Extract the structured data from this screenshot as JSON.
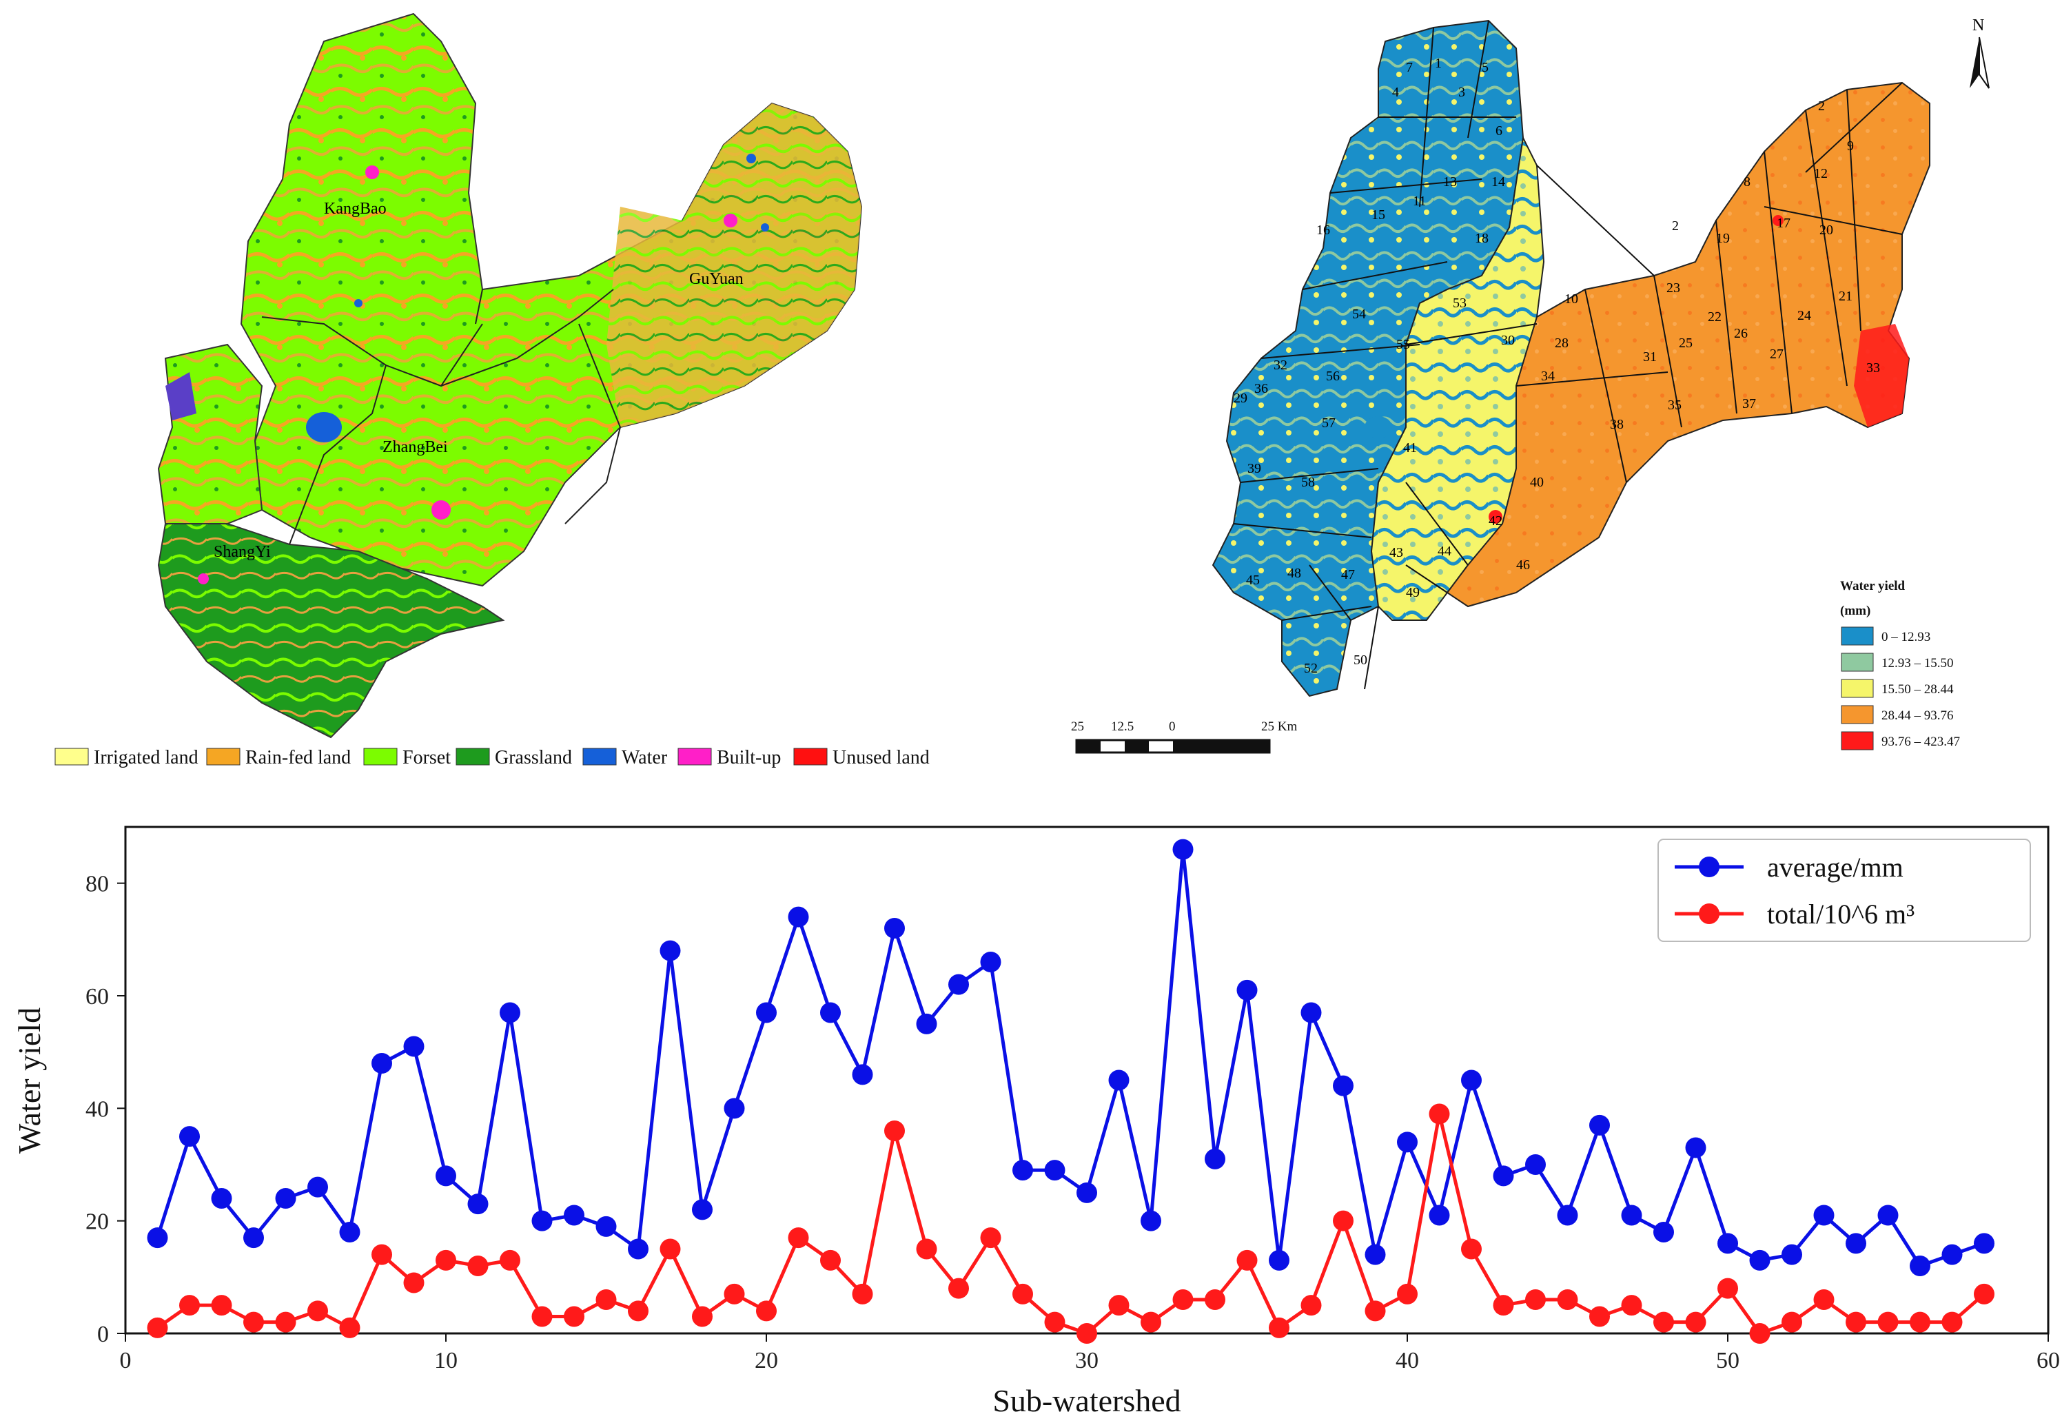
{
  "landuse_map": {
    "region_labels": [
      "KangBao",
      "GuYuan",
      "ZhangBei",
      "ShangYi"
    ],
    "legend": [
      {
        "label": "Irrigated land",
        "color": "#ffff8c"
      },
      {
        "label": "Rain-fed land",
        "color": "#f5a623"
      },
      {
        "label": "Forset",
        "color": "#7cfc00"
      },
      {
        "label": "Grassland",
        "color": "#1e9b1e"
      },
      {
        "label": "Water",
        "color": "#1560d9"
      },
      {
        "label": "Built-up",
        "color": "#ff1fc8"
      },
      {
        "label": "Unused land",
        "color": "#ff1010"
      }
    ]
  },
  "wateryield_map": {
    "north_label": "N",
    "legend_title": "Water yield",
    "legend_unit": "(mm)",
    "legend": [
      {
        "label": "0 – 12.93",
        "color": "#1a8fc9"
      },
      {
        "label": "12.93 – 15.50",
        "color": "#8fc9a0"
      },
      {
        "label": "15.50 – 28.44",
        "color": "#f5f56a"
      },
      {
        "label": "28.44 – 93.76",
        "color": "#f5962e"
      },
      {
        "label": "93.76 – 423.47",
        "color": "#ff1a1a"
      }
    ],
    "scale_labels": [
      "25",
      "12.5",
      "0",
      "25 Km"
    ],
    "subwatershed_labels": [
      "1",
      "2",
      "3",
      "4",
      "5",
      "6",
      "7",
      "8",
      "9",
      "10",
      "11",
      "12",
      "13",
      "14",
      "15",
      "16",
      "17",
      "18",
      "19",
      "20",
      "21",
      "22",
      "23",
      "24",
      "25",
      "26",
      "27",
      "28",
      "29",
      "30",
      "31",
      "32",
      "33",
      "34",
      "35",
      "36",
      "37",
      "38",
      "39",
      "40",
      "41",
      "42",
      "43",
      "44",
      "45",
      "46",
      "47",
      "48",
      "49",
      "50",
      "52",
      "53",
      "54",
      "55",
      "56",
      "57",
      "58",
      "2"
    ]
  },
  "chart_data": {
    "type": "line",
    "xlabel": "Sub-watershed",
    "ylabel": "Water yield",
    "xlim": [
      0,
      60
    ],
    "ylim": [
      0,
      90
    ],
    "xticks": [
      0,
      10,
      20,
      30,
      40,
      50,
      60
    ],
    "yticks": [
      0,
      20,
      40,
      60,
      80
    ],
    "legend_position": "top-right",
    "x": [
      1,
      2,
      3,
      4,
      5,
      6,
      7,
      8,
      9,
      10,
      11,
      12,
      13,
      14,
      15,
      16,
      17,
      18,
      19,
      20,
      21,
      22,
      23,
      24,
      25,
      26,
      27,
      28,
      29,
      30,
      31,
      32,
      33,
      34,
      35,
      36,
      37,
      38,
      39,
      40,
      41,
      42,
      43,
      44,
      45,
      46,
      47,
      48,
      49,
      50,
      51,
      52,
      53,
      54,
      55,
      56,
      57,
      58
    ],
    "series": [
      {
        "name": "average/mm",
        "color": "#0a10e6",
        "values": [
          17,
          35,
          24,
          17,
          24,
          26,
          18,
          48,
          51,
          28,
          23,
          57,
          20,
          21,
          19,
          15,
          68,
          22,
          40,
          57,
          74,
          57,
          46,
          72,
          55,
          62,
          66,
          29,
          29,
          25,
          45,
          20,
          86,
          31,
          61,
          13,
          57,
          44,
          14,
          34,
          21,
          45,
          28,
          30,
          21,
          37,
          21,
          18,
          33,
          16,
          13,
          14,
          21,
          16,
          21,
          12,
          14,
          16
        ]
      },
      {
        "name": "total/10^6 m³",
        "color": "#ff1a1a",
        "values": [
          1,
          5,
          5,
          2,
          2,
          4,
          1,
          14,
          9,
          13,
          12,
          13,
          3,
          3,
          6,
          4,
          15,
          3,
          7,
          4,
          17,
          13,
          7,
          36,
          15,
          8,
          17,
          7,
          2,
          0,
          5,
          2,
          6,
          6,
          13,
          1,
          5,
          20,
          4,
          7,
          39,
          15,
          5,
          6,
          6,
          3,
          5,
          2,
          2,
          8,
          0,
          2,
          6,
          2,
          2,
          2,
          2,
          7
        ]
      }
    ]
  }
}
